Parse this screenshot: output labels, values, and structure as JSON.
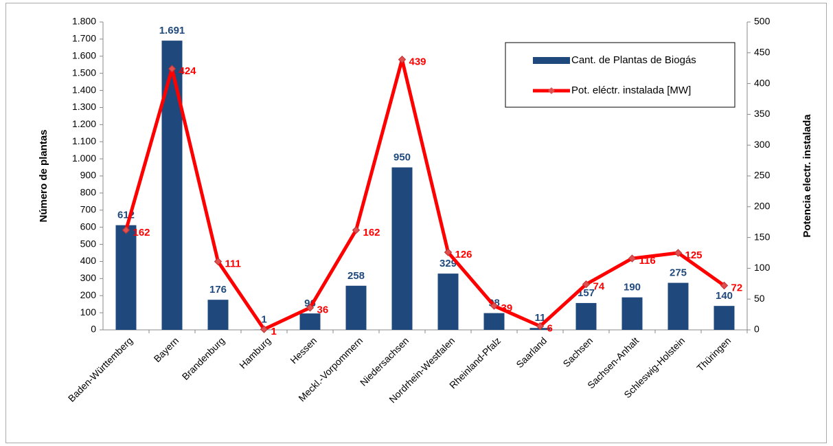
{
  "chart_data": {
    "type": "bar",
    "categories": [
      "Baden-Württemberg",
      "Bayern",
      "Brandenburg",
      "Hamburg",
      "Hessen",
      "Meckl.-Vorpommern",
      "Niedersachsen",
      "Nordrhein-Westfalen",
      "Rheinland-Pfalz",
      "Saarland",
      "Sachsen",
      "Sachsen-Anhalt",
      "Schleswig-Holstein",
      "Thüringen"
    ],
    "series": [
      {
        "name": "Cant. de Plantas de Biogás",
        "type": "bar",
        "color": "#1f497d",
        "values": [
          612,
          1691,
          176,
          1,
          96,
          258,
          950,
          329,
          98,
          11,
          157,
          190,
          275,
          140
        ],
        "value_labels": [
          "612",
          "1.691",
          "176",
          "1",
          "96",
          "258",
          "950",
          "329",
          "98",
          "11",
          "157",
          "190",
          "275",
          "140"
        ]
      },
      {
        "name": "Pot. eléctr. instalada [MW]",
        "type": "line",
        "axis": "y2",
        "color": "#ff0000",
        "values": [
          162,
          424,
          111,
          1,
          36,
          162,
          439,
          126,
          39,
          6,
          74,
          116,
          125,
          72
        ]
      }
    ],
    "ylabel": "Número de plantas",
    "y2label": "Potencia electr. instalada",
    "ylim": [
      0,
      1800
    ],
    "yticks": [
      0,
      100,
      200,
      300,
      400,
      500,
      600,
      700,
      800,
      900,
      {
        "value": 1000,
        "label": "1.000"
      },
      {
        "value": 1100,
        "label": "1.100"
      },
      {
        "value": 1200,
        "label": "1.200"
      },
      {
        "value": 1300,
        "label": "1.300"
      },
      {
        "value": 1400,
        "label": "1.400"
      },
      {
        "value": 1500,
        "label": "1.500"
      },
      {
        "value": 1600,
        "label": "1.600"
      },
      {
        "value": 1700,
        "label": "1.700"
      },
      {
        "value": 1800,
        "label": "1.800"
      }
    ],
    "y2lim": [
      0,
      500
    ],
    "y2ticks": [
      0,
      50,
      100,
      150,
      200,
      250,
      300,
      350,
      400,
      450,
      500
    ],
    "legend": "upper right",
    "grid": false
  }
}
